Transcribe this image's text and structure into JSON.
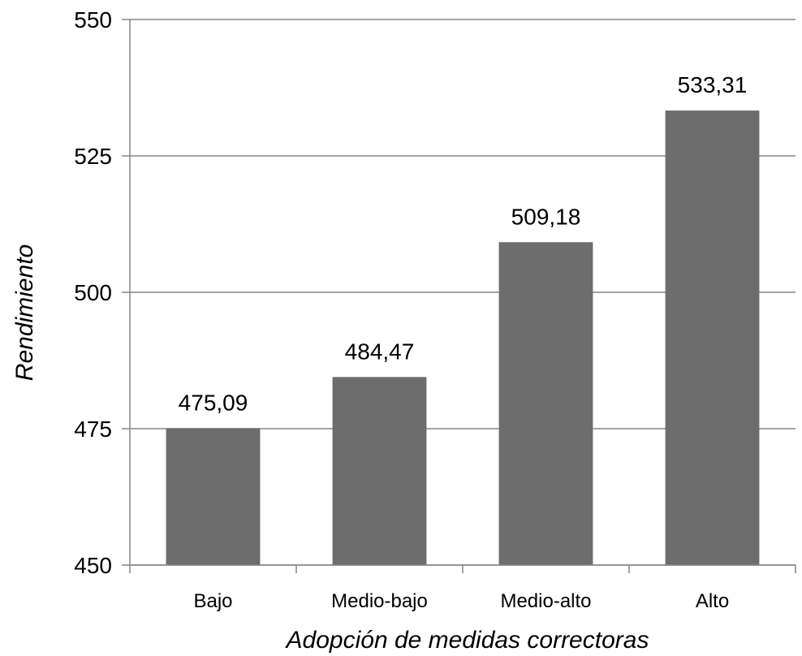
{
  "chart_data": {
    "type": "bar",
    "categories": [
      "Bajo",
      "Medio-bajo",
      "Medio-alto",
      "Alto"
    ],
    "values": [
      475.09,
      484.47,
      509.18,
      533.31
    ],
    "data_labels": [
      "475,09",
      "484,47",
      "509,18",
      "533,31"
    ],
    "title": "",
    "xlabel": "Adopción de medidas correctoras",
    "ylabel": "Rendimiento",
    "ylim": [
      450,
      550
    ],
    "yticks": [
      450,
      475,
      500,
      525,
      550
    ],
    "ytick_labels": [
      "450",
      "475",
      "500",
      "525",
      "550"
    ],
    "grid": true,
    "legend": "none",
    "bar_color": "#6d6d6d",
    "grid_color": "#868686"
  }
}
